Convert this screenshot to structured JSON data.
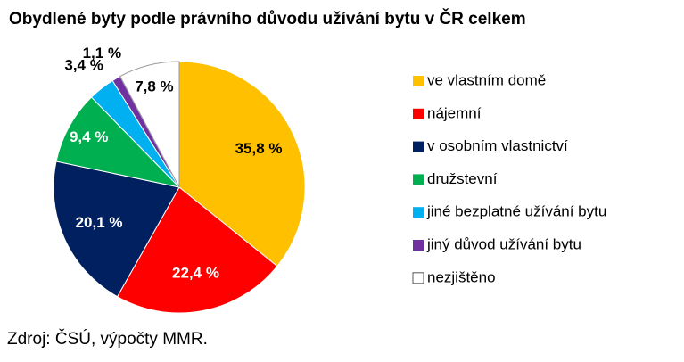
{
  "chart_data": {
    "type": "pie",
    "title": "Obydlené byty podle právního důvodu užívání bytu v ČR celkem",
    "categories": [
      "ve vlastním domě",
      "nájemní",
      "v osobním vlastnictví",
      "družstevní",
      "jiné bezplatné užívání bytu",
      "jiný důvod užívání bytu",
      "nezjištěno"
    ],
    "values": [
      35.8,
      22.4,
      20.1,
      9.4,
      3.4,
      1.1,
      7.8
    ],
    "value_labels": [
      "35,8 %",
      "22,4 %",
      "20,1 %",
      "9,4 %",
      "3,4 %",
      "1,1 %",
      "7,8 %"
    ],
    "colors": [
      "#ffc000",
      "#ff0000",
      "#002060",
      "#00b050",
      "#00b0f0",
      "#7030a0",
      "#ffffff"
    ],
    "source": "Zdroj: ČSÚ, výpočty MMR."
  }
}
